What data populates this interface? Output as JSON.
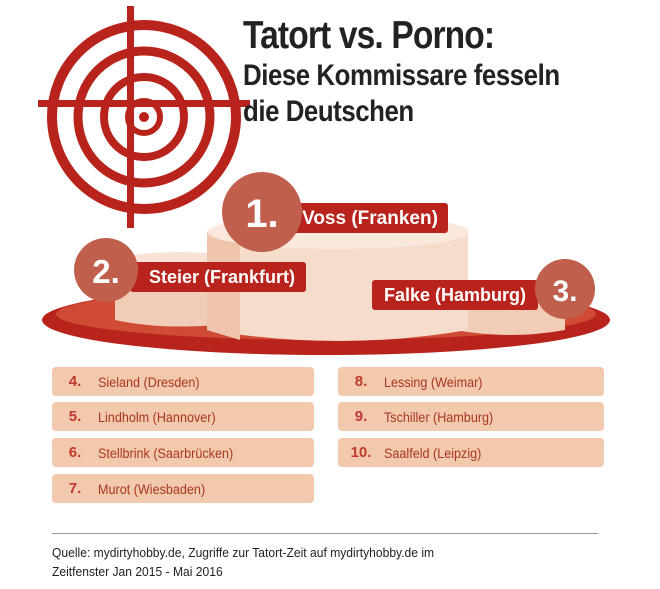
{
  "header": {
    "title_line1": "Tatort vs. Porno:",
    "title_line2": "Diese Kommissare fesseln",
    "title_line3": "die Deutschen"
  },
  "podium": [
    {
      "rank": "1.",
      "name": "Voss (Franken)"
    },
    {
      "rank": "2.",
      "name": "Steier (Frankfurt)"
    },
    {
      "rank": "3.",
      "name": "Falke (Hamburg)"
    }
  ],
  "ranking_left": [
    {
      "rank": "4.",
      "name": "Sieland (Dresden)"
    },
    {
      "rank": "5.",
      "name": "Lindholm (Hannover)"
    },
    {
      "rank": "6.",
      "name": "Stellbrink (Saarbrücken)"
    },
    {
      "rank": "7.",
      "name": "Murot (Wiesbaden)"
    }
  ],
  "ranking_right": [
    {
      "rank": "8.",
      "name": "Lessing (Weimar)"
    },
    {
      "rank": "9.",
      "name": "Tschiller (Hamburg)"
    },
    {
      "rank": "10.",
      "name": "Saalfeld (Leipzig)"
    }
  ],
  "footer": {
    "source_line1": "Quelle: mydirtyhobby.de, Zugriffe zur Tatort-Zeit auf mydirtyhobby.de im",
    "source_line2": "Zeitfenster Jan 2015 - Mai 2016"
  },
  "colors": {
    "accent_red": "#b8231b",
    "badge_dark": "#c0604c",
    "podium_fill": "#f6dccb",
    "list_fill": "#f2c9ad"
  }
}
